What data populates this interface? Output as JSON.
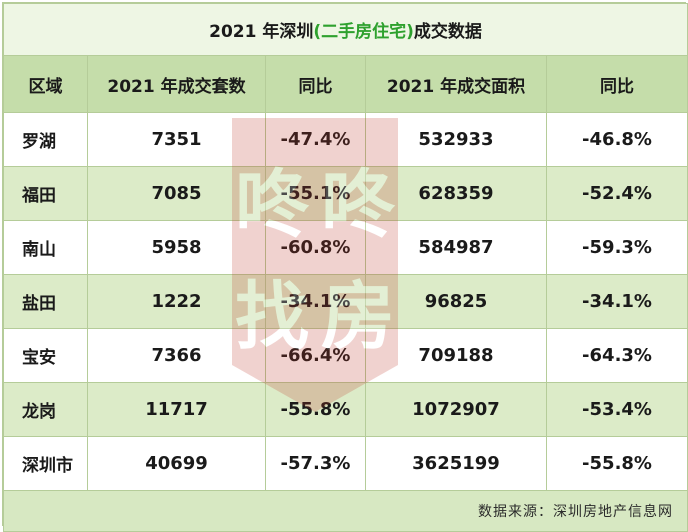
{
  "title": {
    "prefix": "2021 年深圳",
    "highlight": "(二手房住宅)",
    "suffix": "成交数据"
  },
  "headers": [
    "区域",
    "2021 年成交套数",
    "同比",
    "2021 年成交面积",
    "同比"
  ],
  "rows": [
    {
      "region": "罗湖",
      "count": "7351",
      "count_yoy": "-47.4%",
      "area": "532933",
      "area_yoy": "-46.8%"
    },
    {
      "region": "福田",
      "count": "7085",
      "count_yoy": "-55.1%",
      "area": "628359",
      "area_yoy": "-52.4%"
    },
    {
      "region": "南山",
      "count": "5958",
      "count_yoy": "-60.8%",
      "area": "584987",
      "area_yoy": "-59.3%"
    },
    {
      "region": "盐田",
      "count": "1222",
      "count_yoy": "-34.1%",
      "area": "96825",
      "area_yoy": "-34.1%"
    },
    {
      "region": "宝安",
      "count": "7366",
      "count_yoy": "-66.4%",
      "area": "709188",
      "area_yoy": "-64.3%"
    },
    {
      "region": "龙岗",
      "count": "11717",
      "count_yoy": "-55.8%",
      "area": "1072907",
      "area_yoy": "-53.4%"
    },
    {
      "region": "深圳市",
      "count": "40699",
      "count_yoy": "-57.3%",
      "area": "3625199",
      "area_yoy": "-55.8%"
    }
  ],
  "source": "数据来源：深圳房地产信息网",
  "watermark": {
    "text": "咚咚找房",
    "color": "#c0392b"
  }
}
